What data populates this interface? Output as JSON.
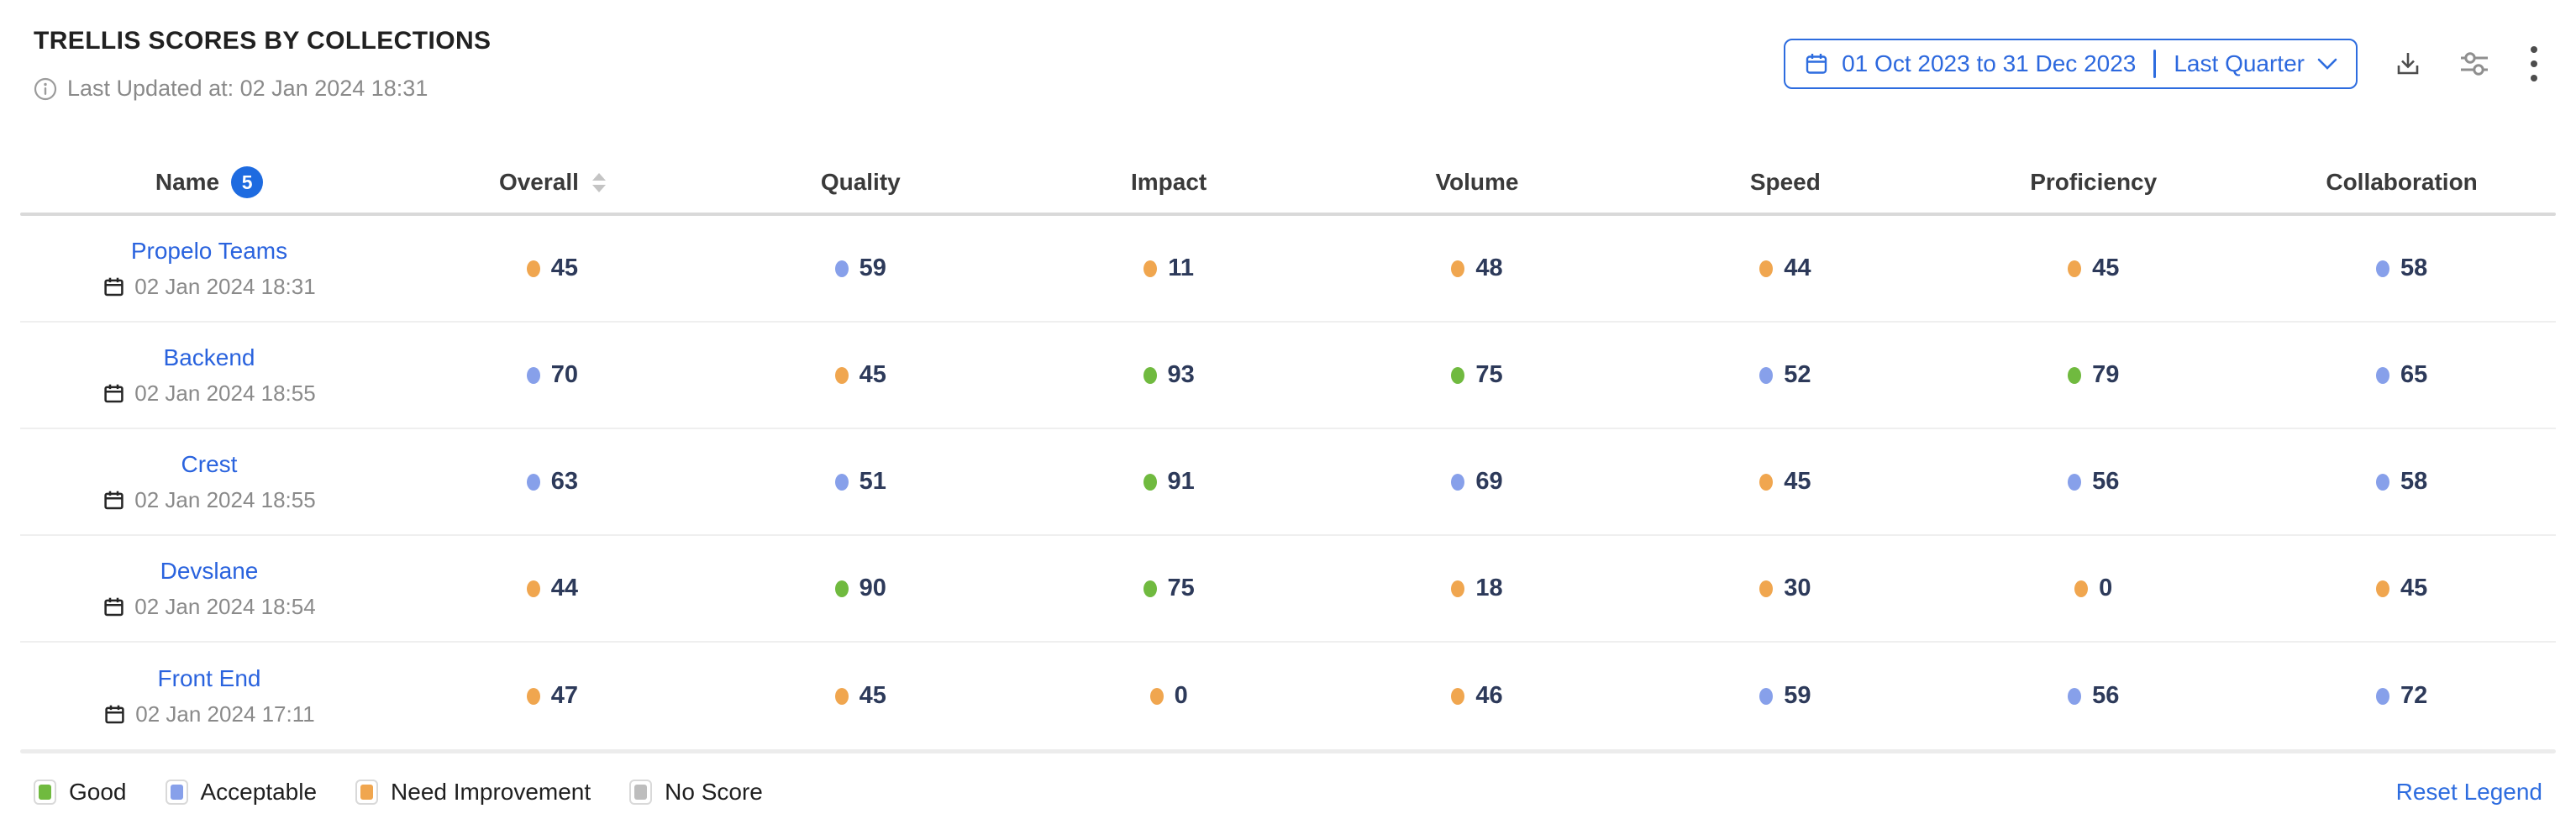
{
  "header": {
    "title": "TRELLIS SCORES BY COLLECTIONS",
    "last_updated": "Last Updated at: 02 Jan 2024 18:31",
    "date_picker": {
      "range": "01 Oct 2023 to 31 Dec 2023",
      "preset": "Last Quarter"
    },
    "actions": [
      "download-icon",
      "settings-sliders-icon",
      "kebab-menu-icon"
    ]
  },
  "table": {
    "columns": [
      {
        "label": "Name",
        "badge": "5"
      },
      {
        "label": "Overall",
        "sortable": true
      },
      {
        "label": "Quality"
      },
      {
        "label": "Impact"
      },
      {
        "label": "Volume"
      },
      {
        "label": "Speed"
      },
      {
        "label": "Proficiency"
      },
      {
        "label": "Collaboration"
      }
    ],
    "rows": [
      {
        "name": "Propelo Teams",
        "updated": "02 Jan 2024 18:31",
        "scores": [
          {
            "value": 45,
            "status": "need_improvement"
          },
          {
            "value": 59,
            "status": "acceptable"
          },
          {
            "value": 11,
            "status": "need_improvement"
          },
          {
            "value": 48,
            "status": "need_improvement"
          },
          {
            "value": 44,
            "status": "need_improvement"
          },
          {
            "value": 45,
            "status": "need_improvement"
          },
          {
            "value": 58,
            "status": "acceptable"
          }
        ]
      },
      {
        "name": "Backend",
        "updated": "02 Jan 2024 18:55",
        "scores": [
          {
            "value": 70,
            "status": "acceptable"
          },
          {
            "value": 45,
            "status": "need_improvement"
          },
          {
            "value": 93,
            "status": "good"
          },
          {
            "value": 75,
            "status": "good"
          },
          {
            "value": 52,
            "status": "acceptable"
          },
          {
            "value": 79,
            "status": "good"
          },
          {
            "value": 65,
            "status": "acceptable"
          }
        ]
      },
      {
        "name": "Crest",
        "updated": "02 Jan 2024 18:55",
        "scores": [
          {
            "value": 63,
            "status": "acceptable"
          },
          {
            "value": 51,
            "status": "acceptable"
          },
          {
            "value": 91,
            "status": "good"
          },
          {
            "value": 69,
            "status": "acceptable"
          },
          {
            "value": 45,
            "status": "need_improvement"
          },
          {
            "value": 56,
            "status": "acceptable"
          },
          {
            "value": 58,
            "status": "acceptable"
          }
        ]
      },
      {
        "name": "Devslane",
        "updated": "02 Jan 2024 18:54",
        "scores": [
          {
            "value": 44,
            "status": "need_improvement"
          },
          {
            "value": 90,
            "status": "good"
          },
          {
            "value": 75,
            "status": "good"
          },
          {
            "value": 18,
            "status": "need_improvement"
          },
          {
            "value": 30,
            "status": "need_improvement"
          },
          {
            "value": 0,
            "status": "need_improvement"
          },
          {
            "value": 45,
            "status": "need_improvement"
          }
        ]
      },
      {
        "name": "Front End",
        "updated": "02 Jan 2024 17:11",
        "scores": [
          {
            "value": 47,
            "status": "need_improvement"
          },
          {
            "value": 45,
            "status": "need_improvement"
          },
          {
            "value": 0,
            "status": "need_improvement"
          },
          {
            "value": 46,
            "status": "need_improvement"
          },
          {
            "value": 59,
            "status": "acceptable"
          },
          {
            "value": 56,
            "status": "acceptable"
          },
          {
            "value": 72,
            "status": "acceptable"
          }
        ]
      }
    ]
  },
  "legend": {
    "items": [
      {
        "label": "Good",
        "status": "good"
      },
      {
        "label": "Acceptable",
        "status": "acceptable"
      },
      {
        "label": "Need Improvement",
        "status": "need_improvement"
      },
      {
        "label": "No Score",
        "status": "no_score"
      }
    ],
    "reset_label": "Reset Legend"
  },
  "colors": {
    "good": "#70ba3f",
    "acceptable": "#87a0ea",
    "need_improvement": "#f0a64f",
    "no_score": "#bdbdbd",
    "link": "#2c68de"
  }
}
